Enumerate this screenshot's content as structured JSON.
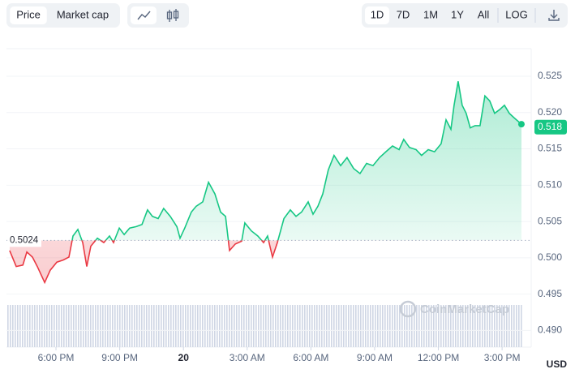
{
  "toolbar": {
    "modes": [
      "Price",
      "Market cap"
    ],
    "active_mode_index": 0,
    "ranges": [
      "1D",
      "7D",
      "1M",
      "1Y",
      "All"
    ],
    "active_range_index": 0,
    "log_button": "LOG"
  },
  "chart_data": {
    "type": "price-line",
    "x": [
      15.82,
      16.13,
      16.44,
      16.63,
      16.89,
      17.12,
      17.47,
      17.73,
      18.04,
      18.34,
      18.61,
      18.8,
      19.03,
      19.26,
      19.45,
      19.64,
      19.95,
      20.25,
      20.52,
      20.71,
      20.98,
      21.21,
      21.47,
      21.78,
      22.05,
      22.31,
      22.54,
      22.81,
      23.07,
      23.38,
      23.69,
      23.84,
      24.06,
      24.37,
      24.6,
      24.91,
      25.18,
      25.48,
      25.75,
      25.98,
      26.17,
      26.44,
      26.74,
      26.89,
      27.2,
      27.5,
      27.77,
      27.96,
      28.19,
      28.42,
      28.73,
      29.03,
      29.3,
      29.56,
      29.87,
      30.1,
      30.33,
      30.56,
      30.82,
      31.09,
      31.4,
      31.7,
      32.01,
      32.31,
      32.62,
      32.92,
      33.23,
      33.53,
      33.84,
      34.15,
      34.37,
      34.64,
      34.95,
      35.21,
      35.52,
      35.82,
      36.13,
      36.36,
      36.59,
      36.74,
      36.93,
      37.12,
      37.31,
      37.5,
      37.73,
      37.96,
      38.19,
      38.42,
      38.65,
      38.88,
      39.11,
      39.34,
      39.56,
      39.91
    ],
    "values": [
      0.501,
      0.4988,
      0.499,
      0.5008,
      0.5001,
      0.4988,
      0.4966,
      0.4983,
      0.4994,
      0.4997,
      0.5001,
      0.503,
      0.5039,
      0.5021,
      0.4988,
      0.5016,
      0.5027,
      0.5021,
      0.503,
      0.5021,
      0.5041,
      0.5032,
      0.5041,
      0.5043,
      0.5046,
      0.5066,
      0.5057,
      0.5054,
      0.5068,
      0.5057,
      0.5043,
      0.5027,
      0.5041,
      0.5063,
      0.5071,
      0.5077,
      0.5104,
      0.5088,
      0.5063,
      0.5057,
      0.501,
      0.5019,
      0.5023,
      0.5048,
      0.5037,
      0.503,
      0.5021,
      0.503,
      0.5001,
      0.5021,
      0.5054,
      0.5066,
      0.5057,
      0.5063,
      0.5077,
      0.506,
      0.5071,
      0.5088,
      0.5121,
      0.5141,
      0.5127,
      0.5138,
      0.5123,
      0.5116,
      0.513,
      0.5127,
      0.5138,
      0.5146,
      0.5154,
      0.5149,
      0.5163,
      0.5152,
      0.5149,
      0.5141,
      0.5149,
      0.5146,
      0.5157,
      0.519,
      0.5177,
      0.521,
      0.5243,
      0.521,
      0.5199,
      0.5179,
      0.5182,
      0.5182,
      0.5223,
      0.5216,
      0.5199,
      0.5204,
      0.521,
      0.5199,
      0.5193,
      0.5184
    ],
    "color_up": "#16c784",
    "color_down": "#ea3943",
    "baseline": 0.5024,
    "current_price": 0.518,
    "xlim": [
      15.67,
      40.37
    ],
    "xticks": [
      {
        "value": 18,
        "label": "6:00 PM"
      },
      {
        "value": 21,
        "label": "9:00 PM"
      },
      {
        "value": 24,
        "label": "20"
      },
      {
        "value": 27,
        "label": "3:00 AM"
      },
      {
        "value": 30,
        "label": "6:00 AM"
      },
      {
        "value": 33,
        "label": "9:00 AM"
      },
      {
        "value": 36,
        "label": "12:00 PM"
      },
      {
        "value": 39,
        "label": "3:00 PM"
      }
    ],
    "ylim": [
      0.4877,
      0.5288
    ],
    "yticks": [
      {
        "value": 0.49,
        "label": "0.490"
      },
      0.495,
      {
        "value": 0.5,
        "label": "0.500"
      },
      0.505,
      {
        "value": 0.51,
        "label": "0.510"
      },
      0.515,
      {
        "value": 0.52,
        "label": "0.520"
      },
      0.525
    ],
    "grid": true,
    "currency": "USD",
    "watermark": "CoinMarketCap"
  }
}
